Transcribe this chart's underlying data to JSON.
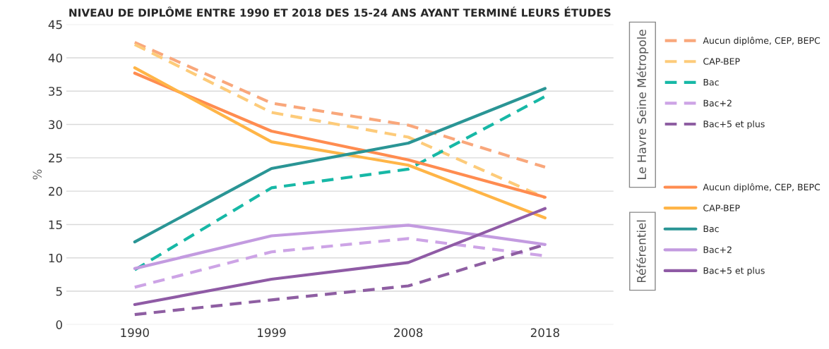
{
  "chart_data": {
    "type": "line",
    "title": "NIVEAU DE DIPLÔME ENTRE 1990 ET 2018 DES 15-24 ANS AYANT TERMINÉ LEURS ÉTUDES",
    "ylabel": "%",
    "categories": [
      "1990",
      "1999",
      "2008",
      "2018"
    ],
    "ylim": [
      0,
      45
    ],
    "yticks": [
      0,
      5,
      10,
      15,
      20,
      25,
      30,
      35,
      40,
      45
    ],
    "grid": "y",
    "legend": "right",
    "marker": "none",
    "annotations": [
      "Le Havre Seine Métropole",
      "Référentiel"
    ],
    "series": [
      {
        "name": "Aucun diplôme, CEP, BEPC",
        "color": "#f9a77b",
        "line_style": "dashed",
        "values": [
          42.3,
          33.2,
          29.9,
          23.6
        ]
      },
      {
        "name": "CAP-BEP",
        "color": "#fdcb7a",
        "line_style": "dashed",
        "values": [
          42.0,
          31.8,
          28.1,
          19.0
        ]
      },
      {
        "name": "Bac",
        "color": "#17b8a6",
        "line_style": "dashed",
        "values": [
          8.2,
          20.5,
          23.3,
          34.2
        ]
      },
      {
        "name": "Bac+2",
        "color": "#cda4e6",
        "line_style": "dashed",
        "values": [
          5.6,
          10.9,
          12.9,
          10.3
        ]
      },
      {
        "name": "Bac+5 et plus",
        "color": "#8e5ea2",
        "line_style": "dashed",
        "values": [
          1.5,
          3.7,
          5.8,
          12.0
        ]
      },
      {
        "name": "Aucun diplôme, CEP, BEPC",
        "color": "#ff8c50",
        "line_style": "solid",
        "values": [
          37.7,
          29.0,
          24.7,
          19.1
        ]
      },
      {
        "name": "CAP-BEP",
        "color": "#ffb547",
        "line_style": "solid",
        "values": [
          38.5,
          27.4,
          23.9,
          16.0
        ]
      },
      {
        "name": "Bac",
        "color": "#2a9595",
        "line_style": "solid",
        "values": [
          12.4,
          23.4,
          27.2,
          35.4
        ]
      },
      {
        "name": "Bac+2",
        "color": "#c39be0",
        "line_style": "solid",
        "values": [
          8.4,
          13.3,
          14.9,
          12.0
        ]
      },
      {
        "name": "Bac+5 et plus",
        "color": "#8f5ba5",
        "line_style": "solid",
        "values": [
          3.0,
          6.8,
          9.3,
          17.4
        ]
      }
    ]
  }
}
